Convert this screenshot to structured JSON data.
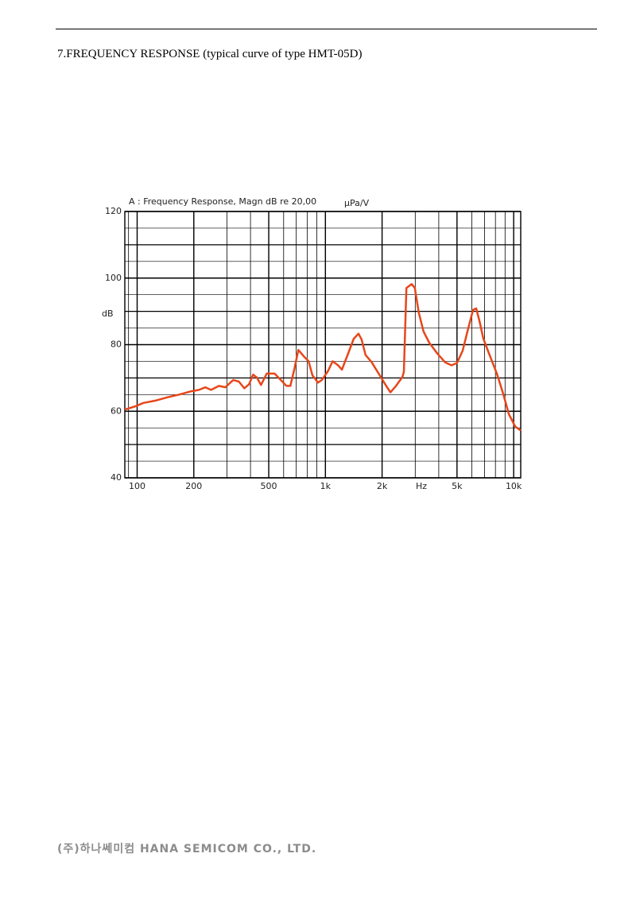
{
  "header": {
    "title": "7.FREQUENCY RESPONSE (typical curve of type HMT-05D)"
  },
  "chart_data": {
    "type": "line",
    "title": "A : Frequency Response, Magn dB re 20,00",
    "unit": "μPa/V",
    "ylabel": "dB",
    "xlabel": "Hz",
    "xscale": "log",
    "grid": true,
    "color": "#e8461a",
    "xlim": [
      86,
      10900
    ],
    "ylim": [
      40,
      120
    ],
    "xticks": [
      100,
      200,
      500,
      {
        "value": 1000,
        "label": "1k"
      },
      {
        "value": 2000,
        "label": "2k"
      },
      {
        "value": 5000,
        "label": "5k"
      },
      {
        "value": 10000,
        "label": "10k"
      }
    ],
    "yticks": [
      40,
      60,
      80,
      100,
      120
    ],
    "x": [
      86,
      98,
      108,
      125,
      145,
      167,
      194,
      213,
      230,
      247,
      272,
      294,
      324,
      347,
      371,
      393,
      413,
      433,
      455,
      488,
      537,
      575,
      621,
      651,
      683,
      718,
      768,
      814,
      853,
      913,
      958,
      1030,
      1092,
      1168,
      1224,
      1311,
      1415,
      1498,
      1556,
      1633,
      1763,
      1942,
      2103,
      2215,
      2370,
      2564,
      2610,
      2693,
      2875,
      2985,
      3130,
      3318,
      3560,
      3924,
      4323,
      4676,
      5004,
      5358,
      5683,
      6084,
      6326,
      6577,
      6903,
      7387,
      8139,
      8802,
      9430,
      10190,
      10900
    ],
    "values": [
      60.5,
      61.5,
      62.5,
      63.2,
      64.2,
      65,
      66,
      66.4,
      67.2,
      66.4,
      67.6,
      67.2,
      69.4,
      68.9,
      66.9,
      68.1,
      71,
      70.1,
      67.9,
      71.3,
      71.3,
      69.6,
      67.6,
      67.6,
      72.5,
      78.4,
      76.5,
      75,
      70.8,
      68.6,
      69.4,
      72,
      75,
      73.8,
      72.5,
      76.9,
      81.8,
      83.3,
      81.6,
      76.9,
      74.7,
      70.8,
      67.6,
      65.7,
      67.6,
      70.3,
      71.8,
      97,
      98.2,
      97,
      89.7,
      84,
      80.6,
      77.4,
      74.7,
      73.8,
      74.5,
      78.2,
      84,
      90.4,
      90.9,
      87.2,
      81.8,
      77.4,
      71.3,
      65.2,
      59.1,
      55.4,
      54.2
    ]
  },
  "footer": {
    "text": "(주)하나쎄미컴 HANA SEMICOM CO., LTD."
  }
}
